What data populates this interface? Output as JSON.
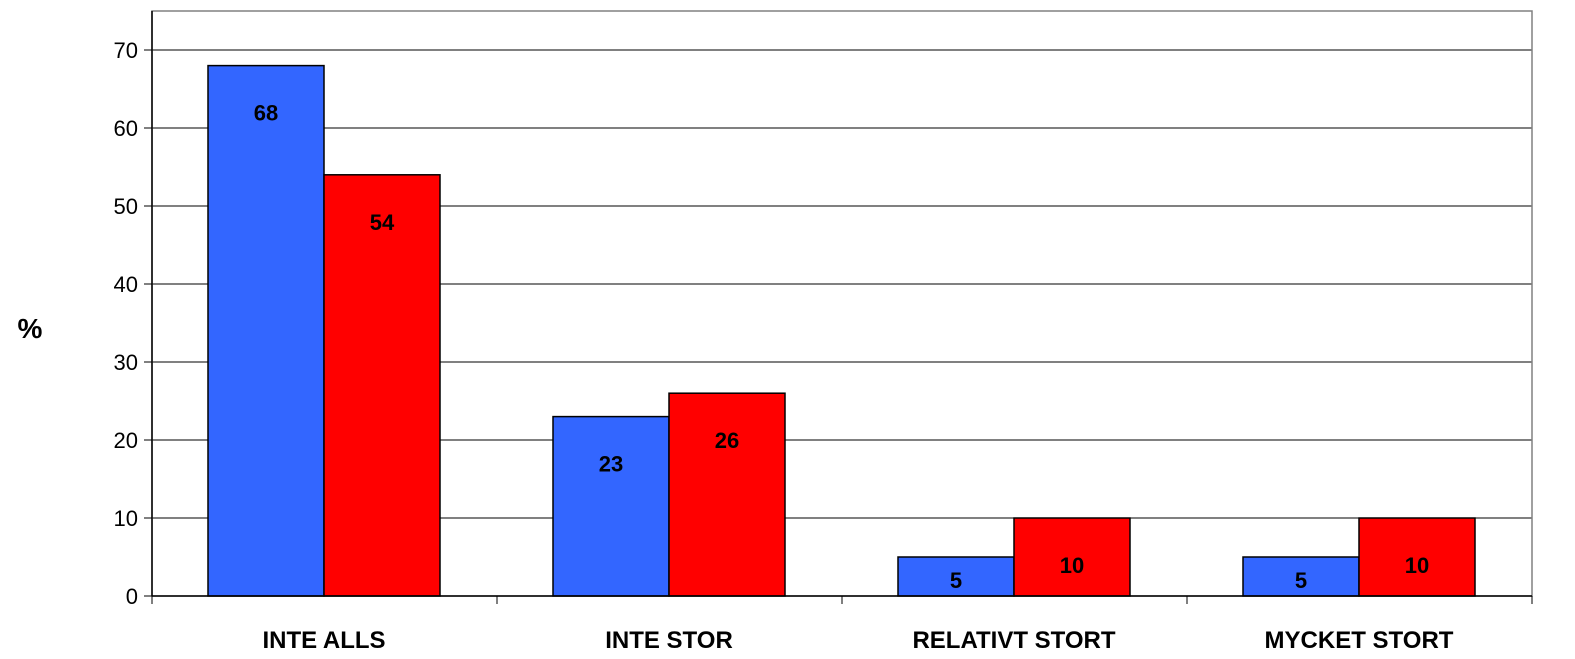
{
  "chart_data": {
    "type": "bar",
    "categories": [
      "INTE ALLS",
      "INTE STOR",
      "RELATIVT STORT",
      "MYCKET STORT"
    ],
    "series": [
      {
        "values": [
          68,
          23,
          5,
          5
        ],
        "labels": [
          "68",
          "23",
          "5",
          "5"
        ],
        "color": "#3366ff"
      },
      {
        "values": [
          54,
          26,
          10,
          10
        ],
        "labels": [
          "54",
          "26",
          "10",
          "10"
        ],
        "color": "#ff0000"
      }
    ],
    "ylabel": "%",
    "ylim": [
      0,
      70
    ],
    "yticks": [
      "0",
      "10",
      "20",
      "30",
      "40",
      "50",
      "60",
      "70"
    ],
    "grid": true
  }
}
